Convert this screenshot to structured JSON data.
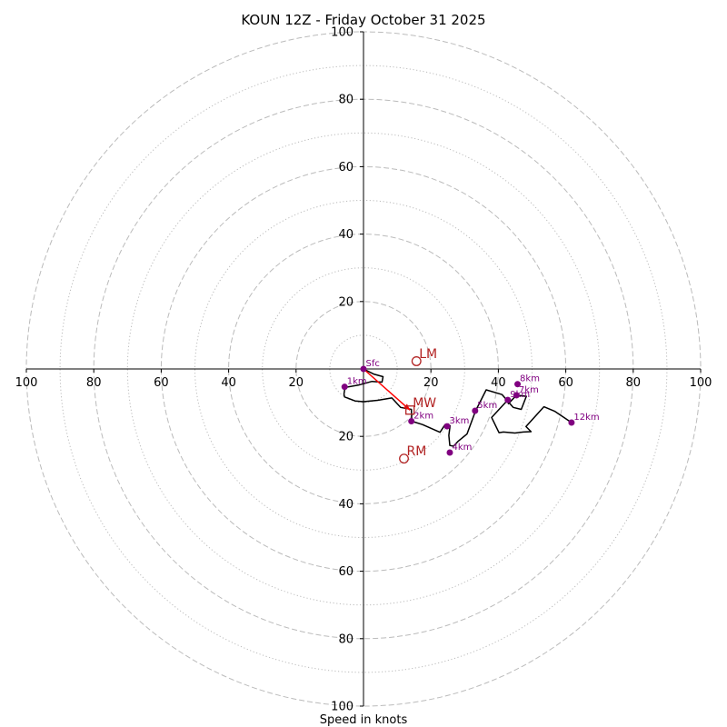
{
  "chart_data": {
    "type": "hodograph",
    "title": "KOUN 12Z - Friday October 31 2025",
    "xlabel": "Speed in knots",
    "xlim": [
      -100,
      100
    ],
    "ylim": [
      -100,
      100
    ],
    "rings_major": [
      20,
      40,
      60,
      80,
      100
    ],
    "rings_minor": [
      10,
      30,
      50,
      70,
      90
    ],
    "x_ticks": [
      {
        "value": -100,
        "label": "100"
      },
      {
        "value": -80,
        "label": "80"
      },
      {
        "value": -60,
        "label": "60"
      },
      {
        "value": -40,
        "label": "40"
      },
      {
        "value": -20,
        "label": "20"
      },
      {
        "value": 20,
        "label": "20"
      },
      {
        "value": 40,
        "label": "40"
      },
      {
        "value": 60,
        "label": "60"
      },
      {
        "value": 80,
        "label": "80"
      },
      {
        "value": 100,
        "label": "100"
      }
    ],
    "y_ticks": [
      {
        "value": 100,
        "label": "100"
      },
      {
        "value": 80,
        "label": "80"
      },
      {
        "value": 60,
        "label": "60"
      },
      {
        "value": 40,
        "label": "40"
      },
      {
        "value": 20,
        "label": "20"
      },
      {
        "value": -20,
        "label": "20"
      },
      {
        "value": -40,
        "label": "40"
      },
      {
        "value": -60,
        "label": "60"
      },
      {
        "value": -80,
        "label": "80"
      },
      {
        "value": -100,
        "label": "100"
      }
    ],
    "trace": [
      [
        0,
        0
      ],
      [
        3,
        -1.5
      ],
      [
        5.8,
        -2.3
      ],
      [
        5.5,
        -3.9
      ],
      [
        2.5,
        -3.7
      ],
      [
        -1.5,
        -4.8
      ],
      [
        -5.5,
        -5.5
      ],
      [
        -5.8,
        -7.5
      ],
      [
        -5.6,
        -8.3
      ],
      [
        -2.5,
        -9.5
      ],
      [
        0,
        -9.7
      ],
      [
        4.2,
        -9.3
      ],
      [
        8.4,
        -8.6
      ],
      [
        11,
        -11.4
      ],
      [
        14.2,
        -12
      ],
      [
        14.3,
        -15.5
      ],
      [
        17.5,
        -16.5
      ],
      [
        22.7,
        -18.8
      ],
      [
        24.2,
        -16.5
      ],
      [
        25.7,
        -16.8
      ],
      [
        25.3,
        -19.7
      ],
      [
        25.6,
        -22.7
      ],
      [
        26.7,
        -22.9
      ],
      [
        28.1,
        -21.4
      ],
      [
        30.7,
        -19.3
      ],
      [
        33.2,
        -12.5
      ],
      [
        36.4,
        -6.2
      ],
      [
        41.1,
        -7.6
      ],
      [
        44.4,
        -11.4
      ],
      [
        46.8,
        -12
      ],
      [
        48.3,
        -8.1
      ],
      [
        45.4,
        -7.8
      ],
      [
        43,
        -10.3
      ],
      [
        42.8,
        -9.2
      ],
      [
        38,
        -14.4
      ],
      [
        40.2,
        -18.9
      ],
      [
        41.5,
        -18.7
      ],
      [
        44.9,
        -19
      ],
      [
        47.4,
        -18.7
      ],
      [
        49.7,
        -18.6
      ],
      [
        48.2,
        -17.1
      ],
      [
        53.5,
        -11.2
      ],
      [
        56.8,
        -12.6
      ],
      [
        61.7,
        -15.9
      ]
    ],
    "height_markers": [
      {
        "label": "Sfc",
        "u": 0,
        "v": 0
      },
      {
        "label": "1km",
        "u": -5.6,
        "v": -5.3
      },
      {
        "label": "2km",
        "u": 14.2,
        "v": -15.5
      },
      {
        "label": "3km",
        "u": 24.8,
        "v": -17
      },
      {
        "label": "4km",
        "u": 25.6,
        "v": -24.8
      },
      {
        "label": "5km",
        "u": 33.1,
        "v": -12.4
      },
      {
        "label": "7km",
        "u": 45.4,
        "v": -7.8
      },
      {
        "label": "8km",
        "u": 45.7,
        "v": -4.5
      },
      {
        "label": "9km",
        "u": 42.8,
        "v": -9.2
      },
      {
        "label": "12km",
        "u": 61.7,
        "v": -15.9
      }
    ],
    "storm_motion": [
      {
        "label": "LM",
        "u": 15.7,
        "v": 2.3,
        "marker": "circle"
      },
      {
        "label": "MW",
        "u": 13.8,
        "v": -12.2,
        "marker": "square"
      },
      {
        "label": "RM",
        "u": 12,
        "v": -26.6,
        "marker": "circle"
      }
    ],
    "mean_wind_vector": {
      "from": [
        0,
        0
      ],
      "to": [
        13.8,
        -12.2
      ]
    },
    "colors": {
      "trace": "#000000",
      "markers": "#800080",
      "storm_motion": "#b22222",
      "vector": "#ff0000",
      "grid": "#bbbbbb",
      "axis": "#000000"
    }
  }
}
